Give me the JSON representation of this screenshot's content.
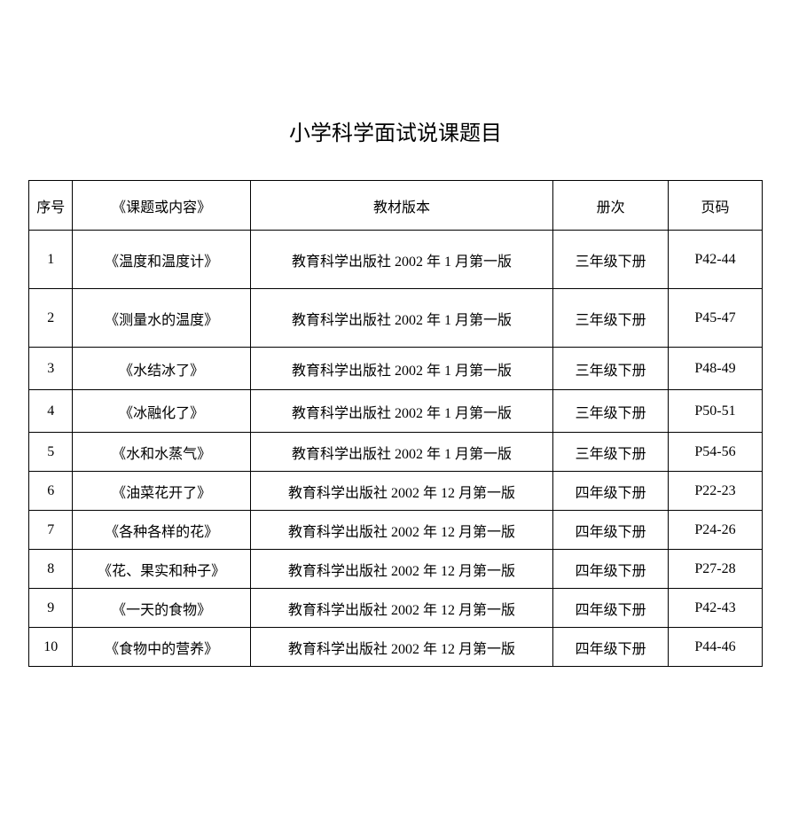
{
  "title": "小学科学面试说课题目",
  "table": {
    "columns": [
      {
        "label": "序号",
        "class": "col-seq"
      },
      {
        "label": "《课题或内容》",
        "class": "col-topic"
      },
      {
        "label": "教材版本",
        "class": "col-publisher"
      },
      {
        "label": "册次",
        "class": "col-volume"
      },
      {
        "label": "页码",
        "class": "col-page"
      }
    ],
    "rows": [
      {
        "seq": "1",
        "topic": "《温度和温度计》",
        "publisher": "教育科学出版社 2002 年 1 月第一版",
        "volume": "三年级下册",
        "page": "P42-44",
        "rowClass": "tall"
      },
      {
        "seq": "2",
        "topic": "《测量水的温度》",
        "publisher": "教育科学出版社 2002 年 1 月第一版",
        "volume": "三年级下册",
        "page": "P45-47",
        "rowClass": "tall"
      },
      {
        "seq": "3",
        "topic": "《水结冰了》",
        "publisher": "教育科学出版社 2002 年 1 月第一版",
        "volume": "三年级下册",
        "page": "P48-49",
        "rowClass": "medium"
      },
      {
        "seq": "4",
        "topic": "《冰融化了》",
        "publisher": "教育科学出版社 2002 年 1 月第一版",
        "volume": "三年级下册",
        "page": "P50-51",
        "rowClass": "medium"
      },
      {
        "seq": "5",
        "topic": "《水和水蒸气》",
        "publisher": "教育科学出版社 2002 年 1 月第一版",
        "volume": "三年级下册",
        "page": "P54-56",
        "rowClass": "short"
      },
      {
        "seq": "6",
        "topic": "《油菜花开了》",
        "publisher": "教育科学出版社 2002 年 12 月第一版",
        "volume": "四年级下册",
        "page": "P22-23",
        "rowClass": "short"
      },
      {
        "seq": "7",
        "topic": "《各种各样的花》",
        "publisher": "教育科学出版社 2002 年 12 月第一版",
        "volume": "四年级下册",
        "page": "P24-26",
        "rowClass": "short"
      },
      {
        "seq": "8",
        "topic": "《花、果实和种子》",
        "publisher": "教育科学出版社 2002 年 12 月第一版",
        "volume": "四年级下册",
        "page": "P27-28",
        "rowClass": "short"
      },
      {
        "seq": "9",
        "topic": "《一天的食物》",
        "publisher": "教育科学出版社 2002 年 12 月第一版",
        "volume": "四年级下册",
        "page": "P42-43",
        "rowClass": "short"
      },
      {
        "seq": "10",
        "topic": "《食物中的营养》",
        "publisher": "教育科学出版社 2002 年 12 月第一版",
        "volume": "四年级下册",
        "page": "P44-46",
        "rowClass": "short"
      }
    ]
  },
  "styling": {
    "background_color": "#ffffff",
    "text_color": "#000000",
    "border_color": "#000000",
    "title_fontsize": 24,
    "body_fontsize": 16,
    "font_family": "SimSun"
  }
}
